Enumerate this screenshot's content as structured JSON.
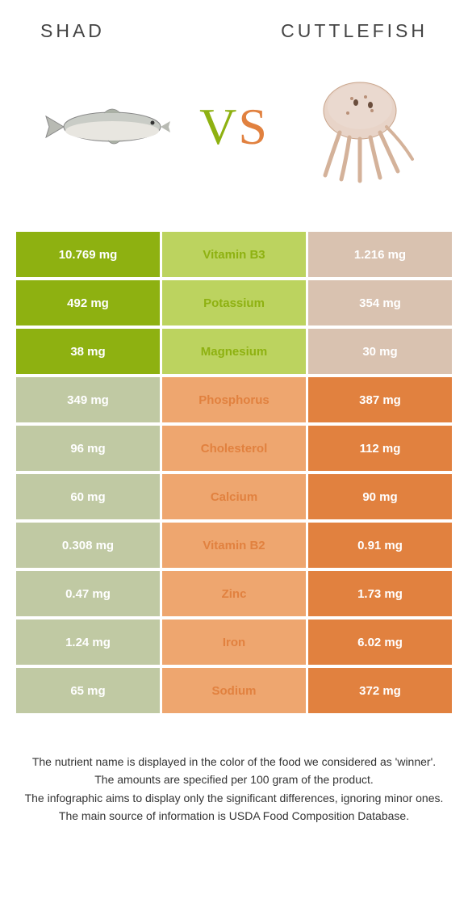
{
  "colors": {
    "shad_primary": "#8eb111",
    "shad_light": "#bcd35f",
    "shad_dim": "#c0c9a3",
    "cuttle_primary": "#e1813f",
    "cuttle_light": "#eea66f",
    "cuttle_dim": "#d9c2b0",
    "mid_bg": "#f6f6f6"
  },
  "header": {
    "left": "Shad",
    "right": "Cuttlefish"
  },
  "vs": {
    "v": "V",
    "s": "S"
  },
  "rows": [
    {
      "nutrient": "Vitamin B3",
      "left": "10.769 mg",
      "right": "1.216 mg",
      "winner": "left"
    },
    {
      "nutrient": "Potassium",
      "left": "492 mg",
      "right": "354 mg",
      "winner": "left"
    },
    {
      "nutrient": "Magnesium",
      "left": "38 mg",
      "right": "30 mg",
      "winner": "left"
    },
    {
      "nutrient": "Phosphorus",
      "left": "349 mg",
      "right": "387 mg",
      "winner": "right"
    },
    {
      "nutrient": "Cholesterol",
      "left": "96 mg",
      "right": "112 mg",
      "winner": "right"
    },
    {
      "nutrient": "Calcium",
      "left": "60 mg",
      "right": "90 mg",
      "winner": "right"
    },
    {
      "nutrient": "Vitamin B2",
      "left": "0.308 mg",
      "right": "0.91 mg",
      "winner": "right"
    },
    {
      "nutrient": "Zinc",
      "left": "0.47 mg",
      "right": "1.73 mg",
      "winner": "right"
    },
    {
      "nutrient": "Iron",
      "left": "1.24 mg",
      "right": "6.02 mg",
      "winner": "right"
    },
    {
      "nutrient": "Sodium",
      "left": "65 mg",
      "right": "372 mg",
      "winner": "right"
    }
  ],
  "footnote": {
    "l1": "The nutrient name is displayed in the color of the food we considered as 'winner'.",
    "l2": "The amounts are specified per 100 gram of the product.",
    "l3": "The infographic aims to display only the significant differences, ignoring minor ones.",
    "l4": "The main source of information is USDA Food Composition Database."
  }
}
